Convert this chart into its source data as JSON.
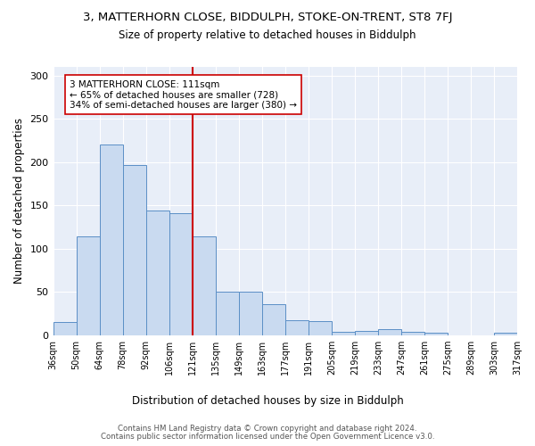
{
  "title": "3, MATTERHORN CLOSE, BIDDULPH, STOKE-ON-TRENT, ST8 7FJ",
  "subtitle": "Size of property relative to detached houses in Biddulph",
  "xlabel": "Distribution of detached houses by size in Biddulph",
  "ylabel": "Number of detached properties",
  "bin_labels": [
    "36sqm",
    "50sqm",
    "64sqm",
    "78sqm",
    "92sqm",
    "106sqm",
    "121sqm",
    "135sqm",
    "149sqm",
    "163sqm",
    "177sqm",
    "191sqm",
    "205sqm",
    "219sqm",
    "233sqm",
    "247sqm",
    "261sqm",
    "275sqm",
    "289sqm",
    "303sqm",
    "317sqm"
  ],
  "bar_values": [
    15,
    114,
    220,
    197,
    144,
    141,
    114,
    50,
    50,
    36,
    17,
    16,
    4,
    5,
    7,
    4,
    3,
    0,
    0,
    3
  ],
  "bar_color": "#c9daf0",
  "bar_edge_color": "#5b8fc6",
  "vline_color": "#cc0000",
  "annotation_text": "3 MATTERHORN CLOSE: 111sqm\n← 65% of detached houses are smaller (728)\n34% of semi-detached houses are larger (380) →",
  "annotation_box_color": "#ffffff",
  "annotation_box_edge": "#cc0000",
  "ylim": [
    0,
    310
  ],
  "yticks": [
    0,
    50,
    100,
    150,
    200,
    250,
    300
  ],
  "background_color": "#e8eef8",
  "grid_color": "#ffffff",
  "footer1": "Contains HM Land Registry data © Crown copyright and database right 2024.",
  "footer2": "Contains public sector information licensed under the Open Government Licence v3.0."
}
